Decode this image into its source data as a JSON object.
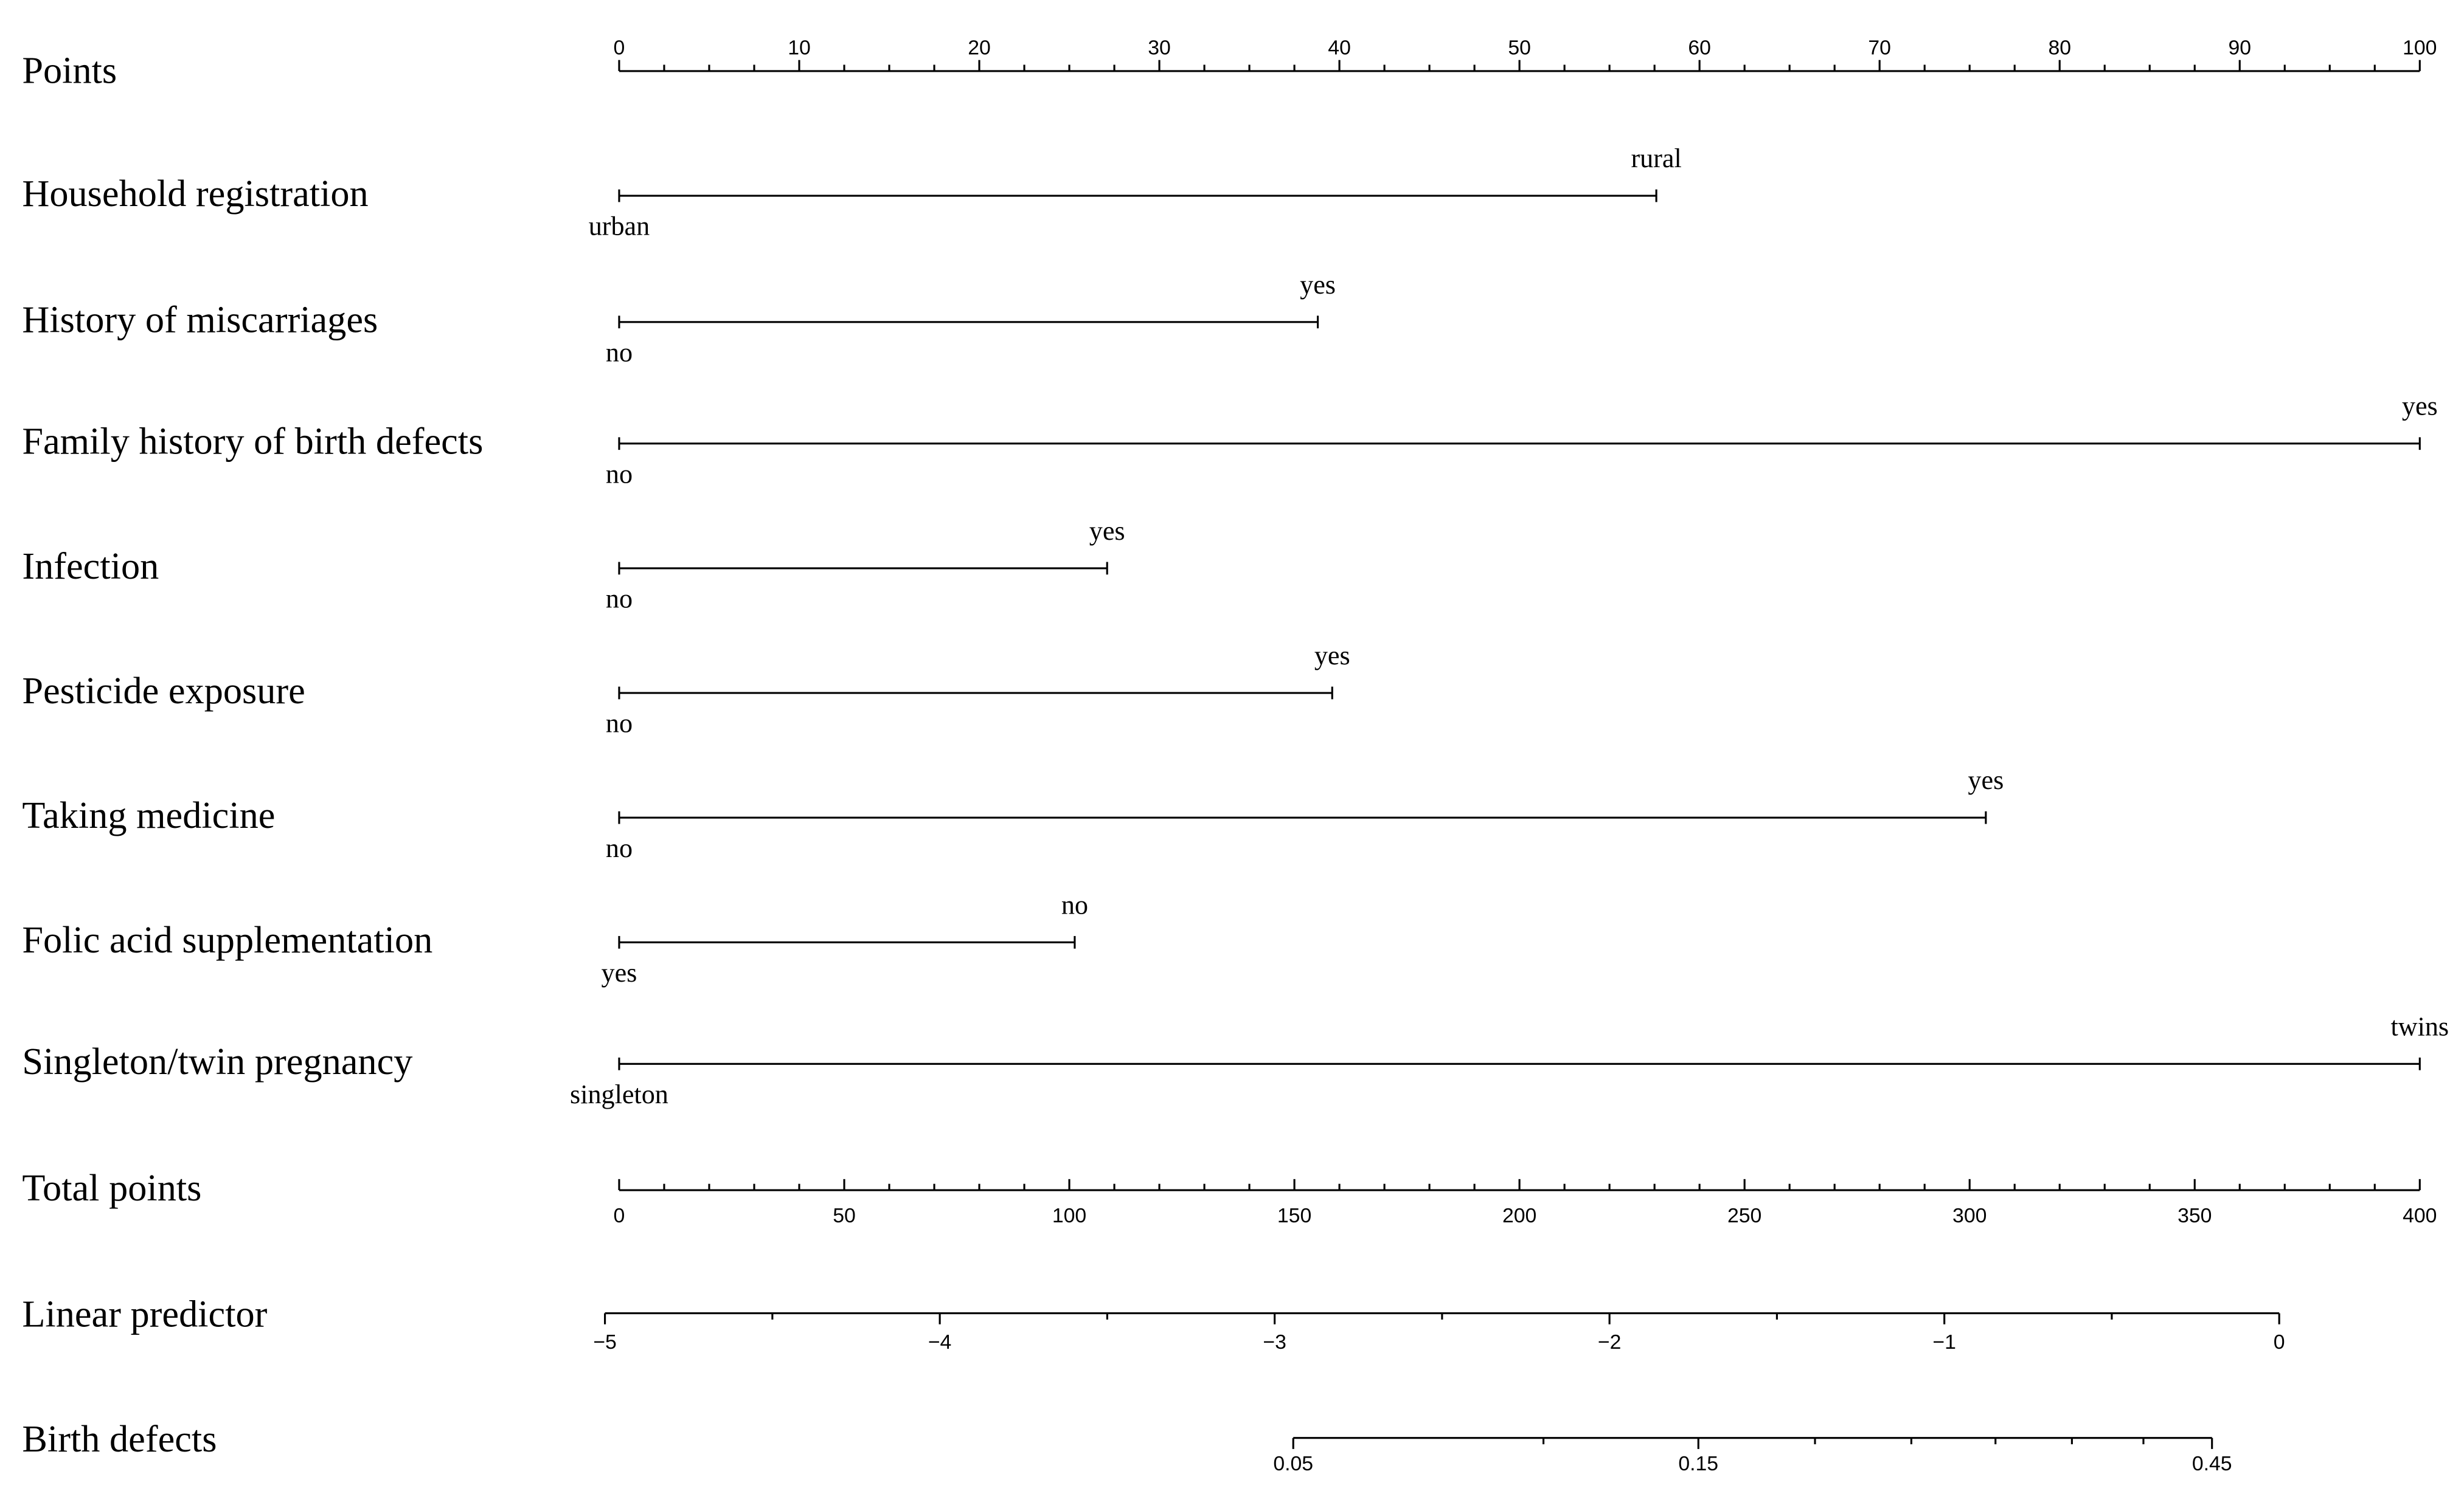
{
  "chart_data": {
    "type": "nomogram",
    "points_axis": {
      "label": "Points",
      "lim": [
        0,
        100
      ],
      "ticks": [
        0,
        10,
        20,
        30,
        40,
        50,
        60,
        70,
        80,
        90,
        100
      ],
      "minor_ticks": [
        2.5,
        5,
        7.5,
        12.5,
        15,
        17.5,
        22.5,
        25,
        27.5,
        32.5,
        35,
        37.5,
        42.5,
        45,
        47.5,
        52.5,
        55,
        57.5,
        62.5,
        65,
        67.5,
        72.5,
        75,
        77.5,
        82.5,
        85,
        87.5,
        92.5,
        95,
        97.5
      ]
    },
    "variables": [
      {
        "label": "Household registration",
        "levels": [
          "urban",
          "rural"
        ],
        "values": [
          0,
          57.6
        ]
      },
      {
        "label": "History of miscarriages",
        "levels": [
          "no",
          "yes"
        ],
        "values": [
          0,
          38.8
        ]
      },
      {
        "label": "Family history of birth defects",
        "levels": [
          "no",
          "yes"
        ],
        "values": [
          0,
          100
        ]
      },
      {
        "label": "Infection",
        "levels": [
          "no",
          "yes"
        ],
        "values": [
          0,
          27.1
        ]
      },
      {
        "label": "Pesticide exposure",
        "levels": [
          "no",
          "yes"
        ],
        "values": [
          0,
          39.6
        ]
      },
      {
        "label": "Taking medicine",
        "levels": [
          "no",
          "yes"
        ],
        "values": [
          0,
          75.9
        ]
      },
      {
        "label": "Folic acid supplementation",
        "levels": [
          "yes",
          "no"
        ],
        "values": [
          0,
          25.3
        ]
      },
      {
        "label": "Singleton/twin pregnancy",
        "levels": [
          "singleton",
          "twins"
        ],
        "values": [
          0,
          100
        ]
      }
    ],
    "total_points_axis": {
      "label": "Total points",
      "lim": [
        0,
        400
      ],
      "ticks": [
        0,
        50,
        100,
        150,
        200,
        250,
        300,
        350,
        400
      ],
      "minor_ticks": [
        10,
        20,
        30,
        40,
        60,
        70,
        80,
        90,
        110,
        120,
        130,
        140,
        160,
        170,
        180,
        190,
        210,
        220,
        230,
        240,
        260,
        270,
        280,
        290,
        310,
        320,
        330,
        340,
        360,
        370,
        380,
        390
      ]
    },
    "linear_predictor_axis": {
      "label": "Linear predictor",
      "lim": [
        -5,
        0
      ],
      "ticks": [
        {
          "value": -5,
          "label": "−5"
        },
        {
          "value": -4,
          "label": "−4"
        },
        {
          "value": -3,
          "label": "−3"
        },
        {
          "value": -2,
          "label": "−2"
        },
        {
          "value": -1,
          "label": "−1"
        },
        0
      ],
      "minor_ticks": [
        -4.5,
        -3.5,
        -2.5,
        -1.5,
        -0.5
      ]
    },
    "outcome_axis": {
      "label": "Birth defects",
      "scale": "logit",
      "lim": [
        0.05,
        0.45
      ],
      "ticks": [
        0.05,
        0.15,
        0.45
      ],
      "minor_ticks": [
        0.1,
        0.2,
        0.25,
        0.3,
        0.35,
        0.4
      ]
    }
  }
}
